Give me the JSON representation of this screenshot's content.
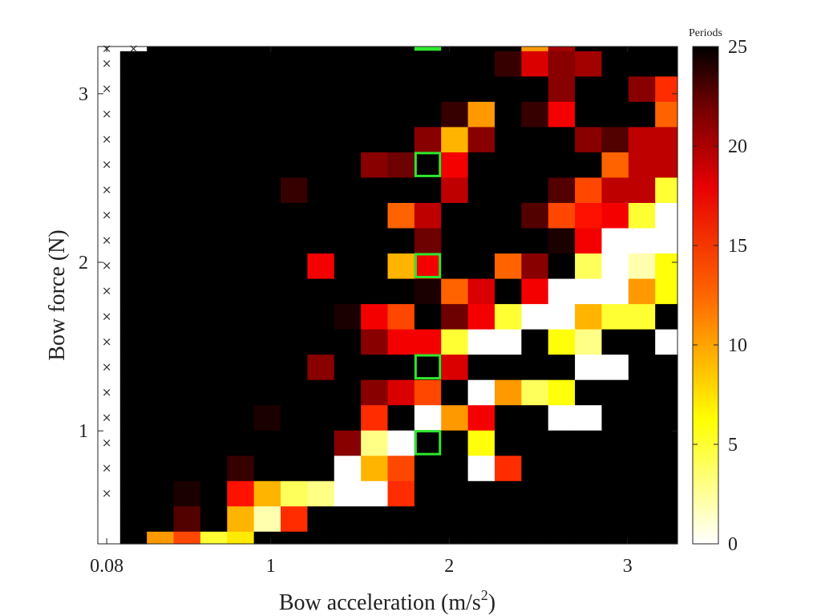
{
  "chart_data": {
    "type": "heatmap",
    "xlabel": "Bow acceleration (m/s",
    "xlabel_sup": "2",
    "xlabel_close": ")",
    "ylabel": "Bow force (N)",
    "x_ticks": [
      {
        "label": "0.08",
        "value": 0.08
      },
      {
        "label": "1",
        "value": 1
      },
      {
        "label": "2",
        "value": 2
      },
      {
        "label": "3",
        "value": 3
      }
    ],
    "y_ticks": [
      {
        "label": "1",
        "value": 1
      },
      {
        "label": "2",
        "value": 2
      },
      {
        "label": "3",
        "value": 3
      }
    ],
    "x_centers": [
      0.08,
      0.23,
      0.38,
      0.53,
      0.68,
      0.83,
      0.98,
      1.13,
      1.28,
      1.43,
      1.58,
      1.73,
      1.88,
      2.03,
      2.18,
      2.33,
      2.48,
      2.63,
      2.78,
      2.93,
      3.08,
      3.23
    ],
    "y_centers": [
      0.33,
      0.48,
      0.63,
      0.78,
      0.93,
      1.08,
      1.23,
      1.38,
      1.53,
      1.68,
      1.83,
      1.98,
      2.13,
      2.28,
      2.43,
      2.58,
      2.73,
      2.88,
      3.03,
      3.18
    ],
    "xlim": [
      0.03,
      3.28
    ],
    "ylim": [
      0.33,
      3.28
    ],
    "colorbar": {
      "title": "Periods",
      "min": 0,
      "max": 25,
      "ticks": [
        0,
        5,
        10,
        15,
        20,
        25
      ],
      "colormap": "hot-reversed"
    },
    "marker_symbol": "×",
    "periods": [
      [
        null,
        25,
        10,
        13,
        5,
        7,
        25,
        25,
        25,
        25,
        25,
        25,
        25,
        25,
        25,
        25,
        25,
        25,
        25,
        25,
        25,
        25
      ],
      [
        null,
        25,
        25,
        22,
        25,
        9,
        2,
        14,
        25,
        25,
        25,
        25,
        25,
        25,
        25,
        25,
        25,
        25,
        25,
        25,
        25,
        25
      ],
      [
        null,
        25,
        25,
        24,
        25,
        15,
        9,
        4,
        3,
        0,
        0,
        14,
        25,
        25,
        25,
        25,
        25,
        25,
        25,
        25,
        25,
        25
      ],
      [
        null,
        25,
        25,
        25,
        25,
        23,
        25,
        25,
        25,
        0,
        9,
        13,
        25,
        25,
        0,
        14,
        25,
        25,
        25,
        25,
        25,
        25
      ],
      [
        null,
        25,
        25,
        25,
        25,
        25,
        25,
        25,
        25,
        20,
        3,
        0,
        25,
        25,
        6,
        25,
        25,
        25,
        25,
        25,
        25,
        25
      ],
      [
        null,
        25,
        25,
        25,
        25,
        25,
        24,
        25,
        25,
        25,
        14,
        25,
        0,
        10,
        16,
        25,
        25,
        0,
        0,
        25,
        25,
        25
      ],
      [
        null,
        25,
        25,
        25,
        25,
        25,
        25,
        25,
        25,
        25,
        20,
        17,
        13,
        25,
        0,
        10,
        4,
        6,
        25,
        25,
        25,
        25
      ],
      [
        null,
        25,
        25,
        25,
        25,
        25,
        25,
        25,
        20,
        25,
        25,
        25,
        25,
        17,
        25,
        25,
        25,
        25,
        0,
        0,
        25,
        25
      ],
      [
        null,
        25,
        25,
        25,
        25,
        25,
        25,
        25,
        25,
        25,
        20,
        16,
        16,
        5,
        0,
        0,
        25,
        6,
        3,
        25,
        25,
        0
      ],
      [
        null,
        25,
        25,
        25,
        25,
        25,
        25,
        25,
        25,
        24,
        16,
        13,
        25,
        21,
        16,
        5,
        0,
        0,
        9,
        5,
        5,
        25
      ],
      [
        null,
        25,
        25,
        25,
        25,
        25,
        25,
        25,
        25,
        25,
        25,
        25,
        24,
        12,
        17,
        25,
        16,
        0,
        0,
        0,
        10,
        6
      ],
      [
        null,
        25,
        25,
        25,
        25,
        25,
        25,
        25,
        16,
        25,
        25,
        9,
        16,
        25,
        25,
        12,
        20,
        25,
        4,
        0,
        2,
        6
      ],
      [
        null,
        25,
        25,
        25,
        25,
        25,
        25,
        25,
        25,
        25,
        25,
        25,
        21,
        25,
        25,
        25,
        25,
        24,
        16,
        0,
        0,
        0
      ],
      [
        null,
        25,
        25,
        25,
        25,
        25,
        25,
        25,
        25,
        25,
        25,
        12,
        18,
        25,
        25,
        25,
        22,
        13,
        15,
        16,
        5,
        0
      ],
      [
        null,
        25,
        25,
        25,
        25,
        25,
        25,
        23,
        25,
        25,
        25,
        25,
        25,
        18,
        25,
        25,
        25,
        22,
        13,
        18,
        18,
        5
      ],
      [
        null,
        25,
        25,
        25,
        25,
        25,
        25,
        25,
        25,
        25,
        20,
        21,
        25,
        16,
        25,
        25,
        25,
        25,
        25,
        12,
        18,
        18
      ],
      [
        null,
        25,
        25,
        25,
        25,
        25,
        25,
        25,
        25,
        25,
        25,
        25,
        20,
        9,
        20,
        25,
        25,
        25,
        20,
        22,
        18,
        18
      ],
      [
        null,
        25,
        25,
        25,
        25,
        25,
        25,
        25,
        25,
        25,
        25,
        25,
        25,
        23,
        10,
        25,
        23,
        16,
        25,
        25,
        25,
        12
      ],
      [
        null,
        25,
        25,
        25,
        25,
        25,
        25,
        25,
        25,
        25,
        25,
        25,
        25,
        25,
        25,
        25,
        25,
        20,
        25,
        25,
        20,
        14
      ],
      [
        null,
        25,
        25,
        25,
        25,
        25,
        25,
        25,
        25,
        25,
        25,
        25,
        25,
        25,
        25,
        23,
        17,
        20,
        19,
        25,
        25,
        25
      ]
    ],
    "periods_top_partial": [
      null,
      null,
      25,
      25,
      25,
      25,
      25,
      25,
      25,
      25,
      25,
      25,
      25,
      25,
      25,
      25,
      10,
      19,
      25,
      25,
      25,
      25
    ],
    "x_markers": [
      {
        "col": 0,
        "rows": [
          2,
          3,
          4,
          5,
          6,
          7,
          8,
          9,
          10,
          11,
          12,
          13,
          14,
          15,
          16,
          17,
          18,
          19,
          "top"
        ]
      },
      {
        "col": 1,
        "rows": [
          "top"
        ]
      }
    ],
    "highlighted_cells": [
      {
        "col": 12,
        "row": 4
      },
      {
        "col": 12,
        "row": 7
      },
      {
        "col": 12,
        "row": 11
      },
      {
        "col": 12,
        "row": 15
      },
      {
        "col": 12,
        "row": "top"
      }
    ],
    "highlight_color": "#2ee62e"
  }
}
